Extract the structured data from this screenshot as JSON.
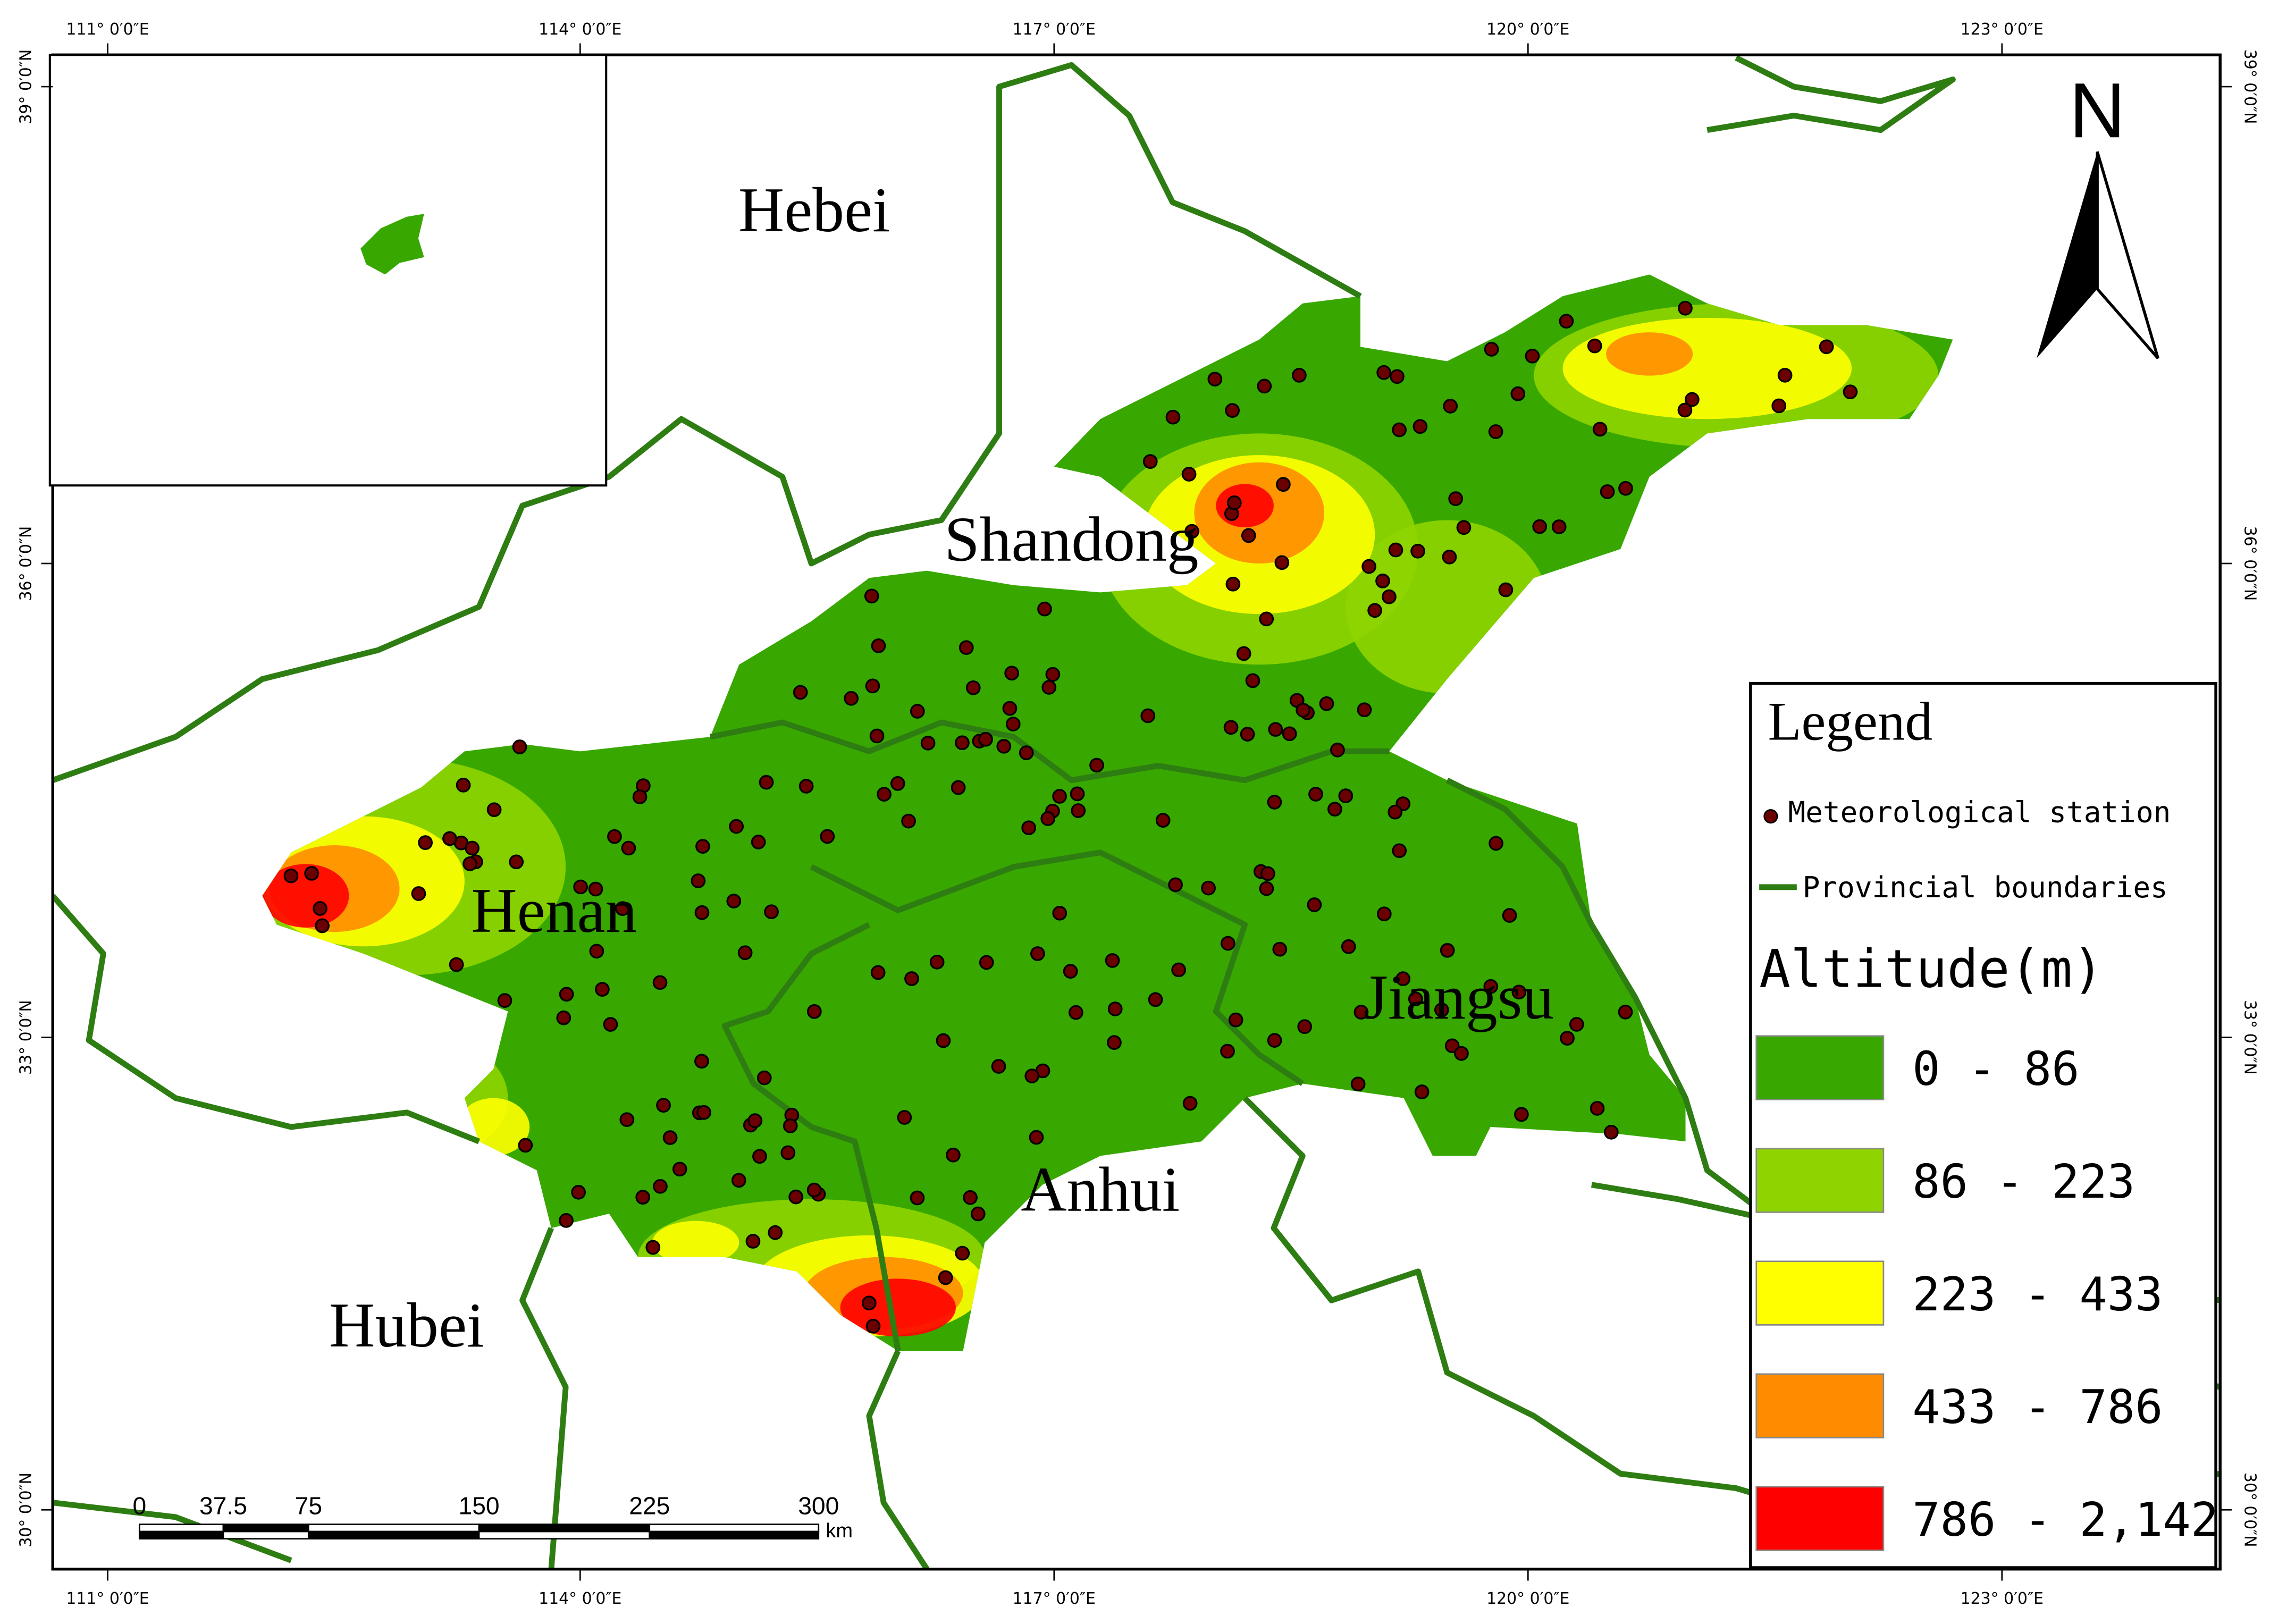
{
  "map": {
    "grid_labels": {
      "longitude": [
        "111° 0′0″E",
        "114° 0′0″E",
        "117° 0′0″E",
        "120° 0′0″E",
        "123° 0′0″E"
      ],
      "latitude": [
        "39° 0′0″N",
        "36° 0′0″N",
        "33° 0′0″N",
        "30° 0′0″N"
      ]
    },
    "province_labels": [
      "Hebei",
      "Shandong",
      "Henan",
      "Jiangsu",
      "Anhui",
      "Hubei"
    ],
    "north_arrow": "N",
    "scale_bar": {
      "ticks": [
        "0",
        "37.5",
        "75",
        "150",
        "225",
        "300"
      ],
      "unit": "km"
    },
    "legend": {
      "title": "Legend",
      "items": [
        "Meteorological station",
        "Provincial boundaries"
      ],
      "altitude_title": "Altitude(m)",
      "classes": [
        {
          "label": "0 - 86",
          "color": "#38a800"
        },
        {
          "label": "86 - 223",
          "color": "#8fd400"
        },
        {
          "label": "223 - 433",
          "color": "#ffff00"
        },
        {
          "label": "433 - 786",
          "color": "#ff8c00"
        },
        {
          "label": "786 - 2,142",
          "color": "#ff0000"
        }
      ]
    }
  }
}
